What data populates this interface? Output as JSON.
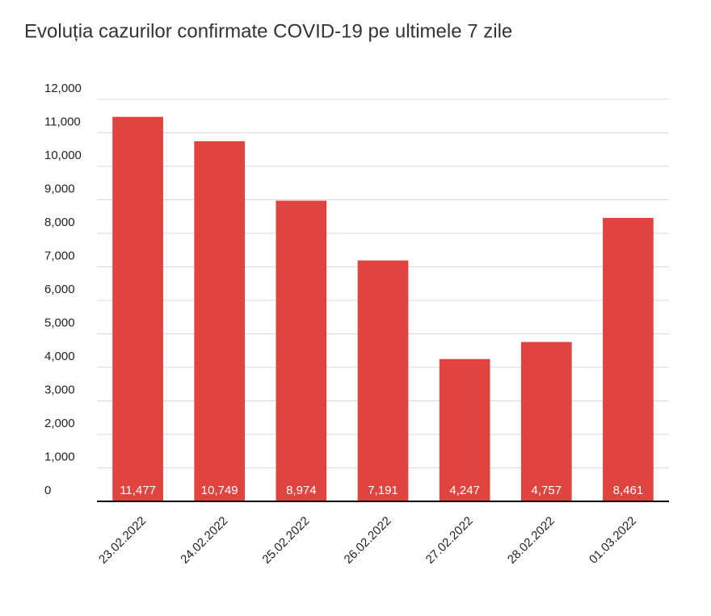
{
  "chart_data": {
    "type": "bar",
    "title": "Evoluția cazurilor confirmate COVID-19 pe ultimele 7 zile",
    "categories": [
      "23.02.2022",
      "24.02.2022",
      "25.02.2022",
      "26.02.2022",
      "27.02.2022",
      "28.02.2022",
      "01.03.2022"
    ],
    "values": [
      11477,
      10749,
      8974,
      7191,
      4247,
      4757,
      8461
    ],
    "value_labels": [
      "11,477",
      "10,749",
      "8,974",
      "7,191",
      "4,247",
      "4,757",
      "8,461"
    ],
    "color": "#e0443f",
    "ylim": [
      0,
      12000
    ],
    "yticks": [
      0,
      {
        "value": 1000,
        "label": "1,000"
      },
      {
        "value": 2000,
        "label": "2,000"
      },
      {
        "value": 3000,
        "label": "3,000"
      },
      {
        "value": 4000,
        "label": "4,000"
      },
      {
        "value": 5000,
        "label": "5,000"
      },
      {
        "value": 6000,
        "label": "6,000"
      },
      {
        "value": 7000,
        "label": "7,000"
      },
      {
        "value": 8000,
        "label": "8,000"
      },
      {
        "value": 9000,
        "label": "9,000"
      },
      {
        "value": 10000,
        "label": "10,000"
      },
      {
        "value": 11000,
        "label": "11,000"
      },
      {
        "value": 12000,
        "label": "12,000"
      }
    ],
    "grid": true
  }
}
